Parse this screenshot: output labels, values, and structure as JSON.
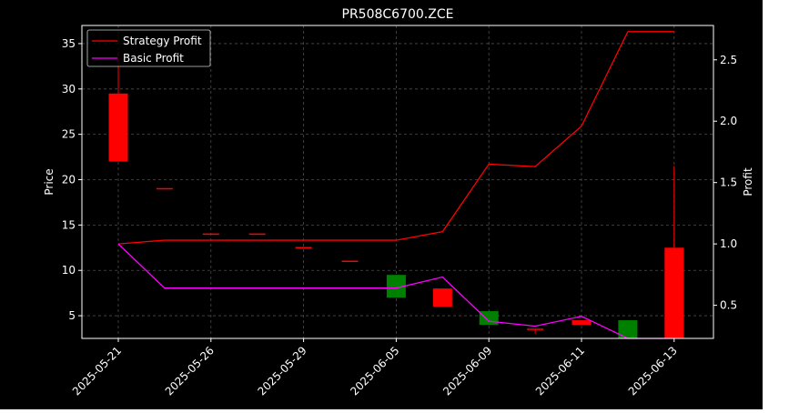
{
  "chart_data": {
    "type": "candlestick+line",
    "title": "PR508C6700.ZCE",
    "ylabel_left": "Price",
    "ylabel_right": "Profit",
    "ylim_left": [
      2.5,
      37
    ],
    "ylim_right": [
      0.23,
      2.78
    ],
    "yticks_left": [
      5,
      10,
      15,
      20,
      25,
      30,
      35
    ],
    "yticks_right": [
      0.5,
      1.0,
      1.5,
      2.0,
      2.5
    ],
    "grid": true,
    "legend_position": "upper-left",
    "x_tick_labels": [
      "2025-05-21",
      "2025-05-26",
      "2025-05-29",
      "2025-06-05",
      "2025-06-09",
      "2025-06-11",
      "2025-06-13"
    ],
    "x_tick_indices": [
      0,
      2,
      4,
      6,
      8,
      10,
      12
    ],
    "candles": [
      {
        "open": 29.5,
        "high": 34.0,
        "low": 22.0,
        "close": 22.0
      },
      {
        "open": 19.0,
        "high": 19.0,
        "low": 19.0,
        "close": 19.0
      },
      {
        "open": 14.0,
        "high": 14.0,
        "low": 14.0,
        "close": 14.0
      },
      {
        "open": 14.0,
        "high": 14.0,
        "low": 14.0,
        "close": 14.0
      },
      {
        "open": 12.5,
        "high": 12.5,
        "low": 12.5,
        "close": 12.5
      },
      {
        "open": 11.0,
        "high": 11.0,
        "low": 11.0,
        "close": 11.0
      },
      {
        "open": 7.0,
        "high": 9.5,
        "low": 7.0,
        "close": 9.5
      },
      {
        "open": 8.0,
        "high": 8.0,
        "low": 6.0,
        "close": 6.0
      },
      {
        "open": 4.0,
        "high": 5.5,
        "low": 4.0,
        "close": 5.5
      },
      {
        "open": 3.5,
        "high": 3.5,
        "low": 3.0,
        "close": 3.5
      },
      {
        "open": 4.5,
        "high": 4.5,
        "low": 4.0,
        "close": 4.0
      },
      {
        "open": 2.5,
        "high": 4.5,
        "low": 2.5,
        "close": 4.5
      },
      {
        "open": 12.5,
        "high": 21.5,
        "low": 2.5,
        "close": 2.5
      }
    ],
    "series": [
      {
        "name": "Strategy Profit",
        "color": "#ff0000",
        "values": [
          1.0,
          1.03,
          1.03,
          1.03,
          1.03,
          1.03,
          1.03,
          1.1,
          1.65,
          1.63,
          1.96,
          2.73,
          2.73
        ]
      },
      {
        "name": "Basic Profit",
        "color": "#ff00ff",
        "values": [
          1.0,
          0.64,
          0.64,
          0.64,
          0.64,
          0.64,
          0.64,
          0.73,
          0.37,
          0.33,
          0.41,
          0.23,
          0.23
        ]
      }
    ],
    "colors": {
      "up": "#008000",
      "down": "#ff0000",
      "background": "#000000",
      "axis": "#ffffff",
      "grid": "#808080"
    }
  }
}
